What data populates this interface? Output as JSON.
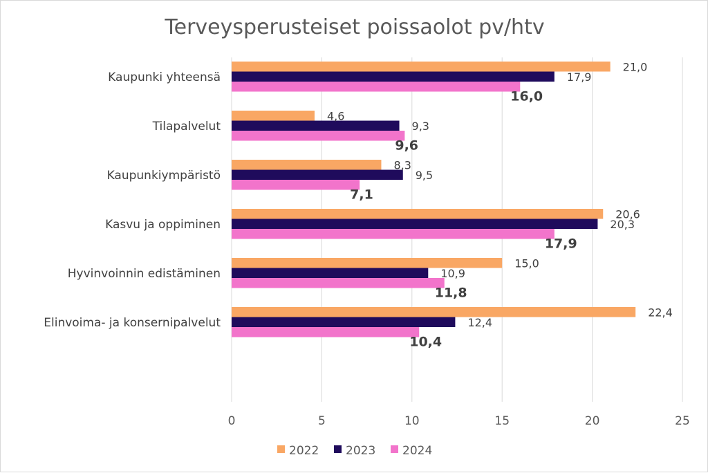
{
  "chart_data": {
    "type": "bar",
    "orientation": "horizontal",
    "title": "Terveysperusteiset poissaolot pv/htv",
    "categories": [
      "Kaupunki yhteensä",
      "Tilapalvelut",
      "Kaupunkiympäristö",
      "Kasvu ja oppiminen",
      "Hyvinvoinnin edistäminen",
      "Elinvoima- ja konsernipalvelut"
    ],
    "series": [
      {
        "name": "2022",
        "color": "#f9a764",
        "values": [
          21.0,
          4.6,
          8.3,
          20.6,
          15.0,
          22.4
        ],
        "labels": [
          "21,0",
          "4,6",
          "8,3",
          "20,6",
          "15,0",
          "22,4"
        ],
        "labels_bold": false
      },
      {
        "name": "2023",
        "color": "#1f0b5c",
        "values": [
          17.9,
          9.3,
          9.5,
          20.3,
          10.9,
          12.4
        ],
        "labels": [
          "17,9",
          "9,3",
          "9,5",
          "20,3",
          "10,9",
          "12,4"
        ],
        "labels_bold": false
      },
      {
        "name": "2024",
        "color": "#f274cb",
        "values": [
          16.0,
          9.6,
          7.1,
          17.9,
          11.8,
          10.4
        ],
        "labels": [
          "16,0",
          "9,6",
          "7,1",
          "17,9",
          "11,8",
          "10,4"
        ],
        "labels_bold": true
      }
    ],
    "xlim": [
      0,
      25
    ],
    "xticks": [
      0,
      5,
      10,
      15,
      20,
      25
    ],
    "xtick_labels": [
      "0",
      "5",
      "10",
      "15",
      "20",
      "25"
    ],
    "grid": "vertical",
    "legend_position": "bottom",
    "gridline_color": "#d9d9d9"
  }
}
